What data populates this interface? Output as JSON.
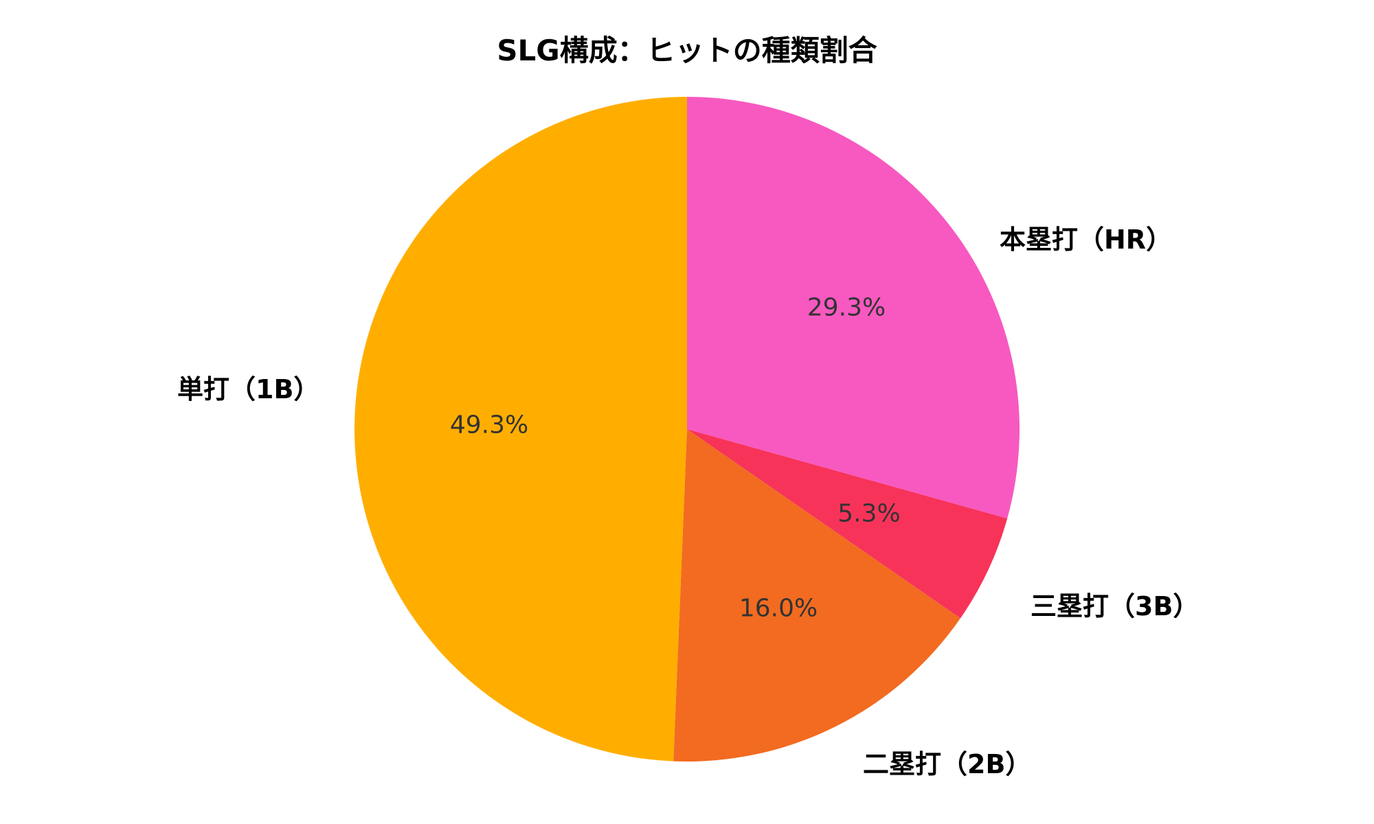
{
  "chart_data": {
    "type": "pie",
    "title": "SLG構成：ヒットの種類割合",
    "start_angle": "12 o'clock",
    "direction": "clockwise",
    "slices": [
      {
        "label": "本塁打（HR）",
        "value": 29.3,
        "pct_label": "29.3%",
        "color": "#F759C0"
      },
      {
        "label": "三塁打（3B）",
        "value": 5.3,
        "pct_label": "5.3%",
        "color": "#F7335A"
      },
      {
        "label": "二塁打（2B）",
        "value": 16.0,
        "pct_label": "16.0%",
        "color": "#F26B21"
      },
      {
        "label": "単打（1B）",
        "value": 49.3,
        "pct_label": "49.3%",
        "color": "#FFAE00"
      }
    ],
    "categories": [
      "本塁打（HR）",
      "三塁打（3B）",
      "二塁打（2B）",
      "単打（1B）"
    ],
    "values": [
      29.3,
      5.3,
      16.0,
      49.3
    ],
    "legend": "none (outer labels)"
  }
}
